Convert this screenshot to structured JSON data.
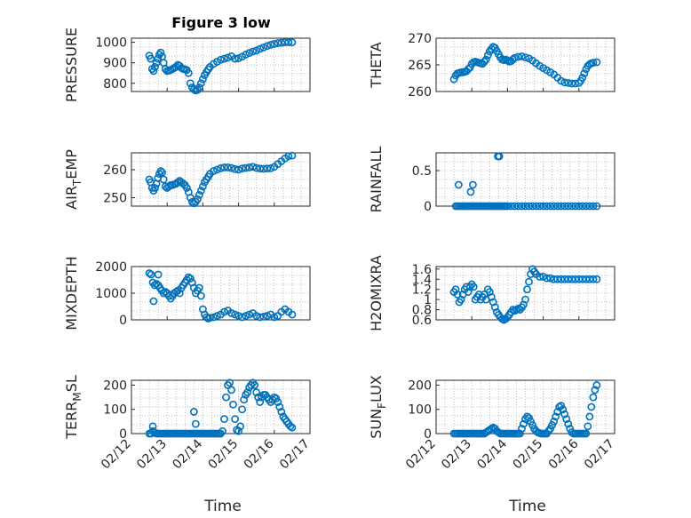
{
  "figure": {
    "title": "Figure 3 low",
    "marker_color": "#0072BD",
    "axis_color": "#262626",
    "grid_color": "#b0b0b0"
  },
  "chart_data": [
    {
      "id": "pressure",
      "type": "scatter",
      "ylabel": "PRESSURE",
      "xlim": [
        "02/12",
        "02/17"
      ],
      "ylim": [
        760,
        1020
      ],
      "yticks": [
        800,
        900,
        1000
      ],
      "xticks": [
        "02/12",
        "02/13",
        "02/14",
        "02/15",
        "02/16",
        "02/17"
      ],
      "show_xticklabels": false,
      "x": [
        12.5,
        12.54,
        12.58,
        12.62,
        12.66,
        12.7,
        12.74,
        12.78,
        12.82,
        12.86,
        12.9,
        12.95,
        13.0,
        13.05,
        13.1,
        13.15,
        13.2,
        13.25,
        13.3,
        13.35,
        13.4,
        13.45,
        13.5,
        13.55,
        13.6,
        13.65,
        13.7,
        13.75,
        13.8,
        13.85,
        13.9,
        13.95,
        14.0,
        14.05,
        14.1,
        14.15,
        14.2,
        14.3,
        14.4,
        14.5,
        14.6,
        14.7,
        14.8,
        14.9,
        15.0,
        15.1,
        15.2,
        15.3,
        15.4,
        15.5,
        15.6,
        15.7,
        15.8,
        15.9,
        16.0,
        16.1,
        16.2,
        16.3,
        16.4,
        16.5
      ],
      "y": [
        935,
        920,
        870,
        860,
        880,
        900,
        920,
        940,
        950,
        930,
        900,
        870,
        860,
        862,
        865,
        870,
        875,
        880,
        890,
        885,
        875,
        870,
        868,
        865,
        850,
        800,
        780,
        770,
        765,
        768,
        780,
        800,
        820,
        840,
        855,
        868,
        880,
        895,
        905,
        915,
        920,
        925,
        932,
        920,
        922,
        930,
        940,
        948,
        955,
        960,
        968,
        975,
        982,
        988,
        992,
        996,
        998,
        1000,
        1000,
        1000
      ]
    },
    {
      "id": "theta",
      "type": "scatter",
      "ylabel": "THETA",
      "xlim": [
        "02/12",
        "02/17"
      ],
      "ylim": [
        260,
        270
      ],
      "yticks": [
        260,
        265,
        270
      ],
      "xticks": [
        "02/12",
        "02/13",
        "02/14",
        "02/15",
        "02/16",
        "02/17"
      ],
      "show_xticklabels": false,
      "x": [
        12.5,
        12.55,
        12.6,
        12.65,
        12.7,
        12.75,
        12.8,
        12.85,
        12.9,
        12.95,
        13.0,
        13.05,
        13.1,
        13.15,
        13.2,
        13.25,
        13.3,
        13.35,
        13.4,
        13.45,
        13.5,
        13.55,
        13.6,
        13.65,
        13.7,
        13.75,
        13.8,
        13.85,
        13.9,
        13.95,
        14.0,
        14.05,
        14.1,
        14.15,
        14.2,
        14.3,
        14.4,
        14.5,
        14.6,
        14.7,
        14.8,
        14.9,
        15.0,
        15.1,
        15.2,
        15.3,
        15.4,
        15.5,
        15.6,
        15.7,
        15.8,
        15.9,
        16.0,
        16.05,
        16.1,
        16.15,
        16.2,
        16.25,
        16.3,
        16.35,
        16.4,
        16.5
      ],
      "y": [
        262.3,
        263.0,
        263.4,
        263.5,
        263.6,
        263.6,
        263.7,
        263.8,
        264.2,
        264.5,
        265.2,
        265.5,
        265.6,
        265.5,
        265.4,
        265.3,
        265.2,
        265.6,
        266.0,
        266.8,
        267.5,
        268.0,
        268.4,
        268.2,
        267.6,
        267.0,
        266.4,
        266.0,
        265.9,
        266.0,
        265.8,
        265.6,
        265.7,
        266.0,
        266.3,
        266.5,
        266.6,
        266.4,
        266.2,
        265.8,
        265.3,
        264.8,
        264.4,
        264.0,
        263.6,
        263.2,
        262.6,
        262.0,
        261.7,
        261.6,
        261.5,
        261.5,
        261.6,
        262.0,
        262.6,
        263.4,
        264.2,
        264.8,
        265.1,
        265.3,
        265.4,
        265.5
      ]
    },
    {
      "id": "air-temp",
      "type": "scatter",
      "ylabel": "AIR_TEMP",
      "ylabel_parts": {
        "main": "AIR",
        "sub": "T",
        "rest": "EMP"
      },
      "xlim": [
        "02/12",
        "02/17"
      ],
      "ylim": [
        247,
        266
      ],
      "yticks": [
        250,
        260
      ],
      "xticks": [
        "02/12",
        "02/13",
        "02/14",
        "02/15",
        "02/16",
        "02/17"
      ],
      "show_xticklabels": false,
      "x": [
        12.5,
        12.54,
        12.58,
        12.62,
        12.66,
        12.7,
        12.74,
        12.78,
        12.82,
        12.86,
        12.9,
        12.95,
        13.0,
        13.05,
        13.1,
        13.15,
        13.2,
        13.25,
        13.3,
        13.35,
        13.4,
        13.45,
        13.5,
        13.55,
        13.6,
        13.65,
        13.7,
        13.75,
        13.8,
        13.85,
        13.9,
        13.95,
        14.0,
        14.05,
        14.1,
        14.15,
        14.2,
        14.3,
        14.4,
        14.5,
        14.6,
        14.7,
        14.8,
        14.9,
        15.0,
        15.1,
        15.2,
        15.3,
        15.4,
        15.5,
        15.6,
        15.7,
        15.8,
        15.9,
        16.0,
        16.1,
        16.2,
        16.3,
        16.4,
        16.5
      ],
      "y": [
        256.5,
        255.5,
        253.5,
        252.5,
        253.5,
        255.0,
        257.0,
        258.5,
        259.5,
        259.0,
        256.5,
        254.0,
        253.5,
        254.0,
        254.5,
        254.5,
        254.8,
        255.0,
        255.5,
        256.0,
        255.5,
        255.0,
        254.5,
        253.5,
        252.0,
        250.0,
        248.5,
        248.0,
        248.5,
        249.5,
        251.0,
        252.5,
        254.0,
        255.5,
        256.5,
        257.5,
        258.5,
        259.5,
        260.0,
        260.5,
        260.8,
        260.8,
        260.6,
        260.2,
        260.0,
        260.4,
        260.6,
        260.8,
        261.0,
        260.6,
        260.4,
        260.3,
        260.4,
        260.5,
        261.0,
        262.0,
        263.0,
        264.0,
        264.8,
        265.0
      ]
    },
    {
      "id": "rainfall",
      "type": "scatter",
      "ylabel": "RAINFALL",
      "xlim": [
        "02/12",
        "02/17"
      ],
      "ylim": [
        0,
        0.75
      ],
      "yticks": [
        0,
        0.5
      ],
      "xticks": [
        "02/12",
        "02/13",
        "02/14",
        "02/15",
        "02/16",
        "02/17"
      ],
      "show_xticklabels": false,
      "x": [
        12.55,
        12.6,
        12.65,
        12.7,
        12.75,
        12.8,
        12.85,
        12.9,
        12.95,
        13.0,
        13.05,
        13.1,
        13.15,
        13.2,
        13.25,
        13.3,
        13.35,
        13.4,
        13.45,
        13.5,
        13.55,
        13.6,
        13.65,
        13.7,
        13.75,
        13.8,
        13.85,
        13.9,
        13.95,
        14.0,
        14.1,
        14.2,
        14.3,
        14.4,
        14.5,
        14.6,
        14.7,
        14.8,
        14.9,
        15.0,
        15.1,
        15.2,
        15.3,
        15.4,
        15.5,
        15.6,
        15.7,
        15.8,
        15.9,
        16.0,
        16.1,
        16.2,
        16.3,
        16.4,
        16.5,
        12.63,
        12.97,
        13.03,
        13.73,
        13.77
      ],
      "y": [
        0,
        0,
        0,
        0,
        0,
        0,
        0,
        0,
        0,
        0,
        0,
        0,
        0,
        0,
        0,
        0,
        0,
        0,
        0,
        0,
        0,
        0,
        0,
        0,
        0,
        0,
        0,
        0,
        0,
        0,
        0,
        0,
        0,
        0,
        0,
        0,
        0,
        0,
        0,
        0,
        0,
        0,
        0,
        0,
        0,
        0,
        0,
        0,
        0,
        0,
        0,
        0,
        0,
        0,
        0,
        0.3,
        0.2,
        0.3,
        0.7,
        0.7
      ]
    },
    {
      "id": "mixdepth",
      "type": "scatter",
      "ylabel": "MIXDEPTH",
      "xlim": [
        "02/12",
        "02/17"
      ],
      "ylim": [
        0,
        2000
      ],
      "yticks": [
        0,
        1000,
        2000
      ],
      "xticks": [
        "02/12",
        "02/13",
        "02/14",
        "02/15",
        "02/16",
        "02/17"
      ],
      "show_xticklabels": false,
      "x": [
        12.5,
        12.55,
        12.6,
        12.65,
        12.7,
        12.75,
        12.8,
        12.85,
        12.9,
        12.95,
        13.0,
        13.05,
        13.1,
        13.15,
        13.2,
        13.25,
        13.3,
        13.35,
        13.4,
        13.45,
        13.5,
        13.55,
        13.6,
        13.65,
        13.7,
        13.75,
        13.8,
        13.85,
        13.9,
        13.95,
        14.0,
        14.05,
        14.1,
        14.15,
        14.2,
        14.3,
        14.4,
        14.5,
        14.6,
        14.7,
        14.8,
        14.9,
        15.0,
        15.1,
        15.2,
        15.3,
        15.4,
        15.5,
        15.6,
        15.7,
        15.8,
        15.9,
        16.0,
        16.1,
        16.2,
        16.3,
        16.4,
        16.5,
        12.62,
        12.75
      ],
      "y": [
        1750,
        1700,
        1400,
        1300,
        1350,
        1700,
        1200,
        1100,
        1000,
        1050,
        1000,
        900,
        800,
        900,
        1000,
        1050,
        1100,
        1000,
        1200,
        1300,
        1400,
        1500,
        1600,
        1550,
        1400,
        1200,
        1000,
        1100,
        1200,
        900,
        400,
        200,
        100,
        50,
        80,
        100,
        150,
        200,
        300,
        350,
        250,
        200,
        150,
        100,
        150,
        200,
        250,
        150,
        100,
        120,
        150,
        200,
        100,
        150,
        300,
        400,
        300,
        200,
        700,
        1300
      ]
    },
    {
      "id": "h2omixra",
      "type": "scatter",
      "ylabel": "H2OMIXRA",
      "xlim": [
        "02/12",
        "02/17"
      ],
      "ylim": [
        0.6,
        1.65
      ],
      "yticks": [
        0.6,
        0.8,
        1,
        1.2,
        1.4,
        1.6
      ],
      "xticks": [
        "02/12",
        "02/13",
        "02/14",
        "02/15",
        "02/16",
        "02/17"
      ],
      "show_xticklabels": false,
      "x": [
        12.5,
        12.55,
        12.6,
        12.65,
        12.7,
        12.75,
        12.8,
        12.85,
        12.9,
        12.95,
        13.0,
        13.05,
        13.1,
        13.15,
        13.2,
        13.25,
        13.3,
        13.35,
        13.4,
        13.45,
        13.5,
        13.55,
        13.6,
        13.65,
        13.7,
        13.75,
        13.8,
        13.85,
        13.9,
        13.95,
        14.0,
        14.05,
        14.1,
        14.15,
        14.2,
        14.25,
        14.3,
        14.35,
        14.4,
        14.45,
        14.5,
        14.55,
        14.6,
        14.65,
        14.7,
        14.75,
        14.8,
        14.9,
        15.0,
        15.1,
        15.2,
        15.3,
        15.4,
        15.5,
        15.6,
        15.7,
        15.8,
        15.9,
        16.0,
        16.1,
        16.2,
        16.3,
        16.4,
        16.5
      ],
      "y": [
        1.15,
        1.2,
        1.1,
        0.95,
        1.0,
        1.1,
        1.2,
        1.25,
        1.15,
        1.25,
        1.3,
        1.25,
        1.0,
        1.05,
        1.1,
        1.0,
        1.05,
        1.1,
        1.0,
        1.2,
        1.15,
        1.05,
        0.95,
        0.85,
        0.75,
        0.7,
        0.65,
        0.62,
        0.6,
        0.62,
        0.65,
        0.7,
        0.75,
        0.8,
        0.78,
        0.8,
        0.82,
        0.8,
        0.85,
        0.9,
        1.0,
        1.2,
        1.35,
        1.5,
        1.6,
        1.55,
        1.5,
        1.45,
        1.45,
        1.42,
        1.42,
        1.4,
        1.4,
        1.4,
        1.4,
        1.4,
        1.4,
        1.4,
        1.4,
        1.4,
        1.4,
        1.4,
        1.4,
        1.4
      ]
    },
    {
      "id": "terr-msl",
      "type": "scatter",
      "ylabel": "TERR_MSL",
      "ylabel_parts": {
        "main": "TERR",
        "sub": "M",
        "rest": "SL"
      },
      "xlim": [
        "02/12",
        "02/17"
      ],
      "ylim": [
        0,
        220
      ],
      "yticks": [
        0,
        100,
        200
      ],
      "xticks": [
        "02/12",
        "02/13",
        "02/14",
        "02/15",
        "02/16",
        "02/17"
      ],
      "show_xticklabels": true,
      "x": [
        12.5,
        12.55,
        12.6,
        12.65,
        12.7,
        12.75,
        12.8,
        12.85,
        12.9,
        12.95,
        13.0,
        13.05,
        13.1,
        13.15,
        13.2,
        13.25,
        13.3,
        13.35,
        13.4,
        13.45,
        13.5,
        13.55,
        13.6,
        13.65,
        13.7,
        13.75,
        13.8,
        13.85,
        13.9,
        13.95,
        14.0,
        14.05,
        14.1,
        14.15,
        14.2,
        14.25,
        14.3,
        14.35,
        14.4,
        14.45,
        14.5,
        14.55,
        14.6,
        14.65,
        14.7,
        14.75,
        14.8,
        14.85,
        14.9,
        14.95,
        15.0,
        15.05,
        15.1,
        15.15,
        15.2,
        15.25,
        15.3,
        15.35,
        15.4,
        15.45,
        15.5,
        15.55,
        15.6,
        15.65,
        15.7,
        15.75,
        15.8,
        15.85,
        15.9,
        15.95,
        16.0,
        16.05,
        16.1,
        16.15,
        16.2,
        16.25,
        16.3,
        16.35,
        16.4,
        16.45,
        16.5,
        12.6,
        13.75,
        13.8
      ],
      "y": [
        0,
        0,
        10,
        5,
        0,
        0,
        0,
        0,
        0,
        0,
        0,
        0,
        0,
        0,
        0,
        0,
        0,
        0,
        0,
        0,
        0,
        0,
        0,
        0,
        0,
        0,
        0,
        0,
        0,
        0,
        0,
        0,
        0,
        0,
        0,
        0,
        0,
        0,
        0,
        0,
        0,
        10,
        60,
        150,
        200,
        210,
        180,
        120,
        60,
        15,
        10,
        30,
        100,
        140,
        160,
        170,
        190,
        200,
        210,
        200,
        170,
        150,
        130,
        150,
        160,
        160,
        150,
        140,
        130,
        140,
        150,
        145,
        130,
        110,
        90,
        70,
        60,
        50,
        40,
        30,
        25,
        30,
        90,
        40
      ]
    },
    {
      "id": "sun-flux",
      "type": "scatter",
      "ylabel": "SUN_FLUX",
      "ylabel_parts": {
        "main": "SUN",
        "sub": "F",
        "rest": "LUX"
      },
      "xlim": [
        "02/12",
        "02/17"
      ],
      "ylim": [
        0,
        220
      ],
      "yticks": [
        0,
        100,
        200
      ],
      "xticks": [
        "02/12",
        "02/13",
        "02/14",
        "02/15",
        "02/16",
        "02/17"
      ],
      "show_xticklabels": true,
      "x": [
        12.5,
        12.55,
        12.6,
        12.65,
        12.7,
        12.75,
        12.8,
        12.85,
        12.9,
        12.95,
        13.0,
        13.05,
        13.1,
        13.15,
        13.2,
        13.25,
        13.3,
        13.35,
        13.4,
        13.45,
        13.5,
        13.55,
        13.6,
        13.65,
        13.7,
        13.75,
        13.8,
        13.85,
        13.9,
        13.95,
        14.0,
        14.05,
        14.1,
        14.15,
        14.2,
        14.25,
        14.3,
        14.35,
        14.4,
        14.45,
        14.5,
        14.55,
        14.6,
        14.65,
        14.7,
        14.75,
        14.8,
        14.85,
        14.9,
        14.95,
        15.0,
        15.05,
        15.1,
        15.15,
        15.2,
        15.25,
        15.3,
        15.35,
        15.4,
        15.45,
        15.5,
        15.55,
        15.6,
        15.65,
        15.7,
        15.75,
        15.8,
        15.85,
        15.9,
        15.95,
        16.0,
        16.05,
        16.1,
        16.15,
        16.2,
        16.25,
        16.3,
        16.35,
        16.4,
        16.45,
        16.5
      ],
      "y": [
        0,
        0,
        0,
        0,
        0,
        0,
        0,
        0,
        0,
        0,
        0,
        0,
        0,
        0,
        0,
        0,
        0,
        0,
        5,
        10,
        15,
        20,
        25,
        20,
        10,
        5,
        0,
        0,
        0,
        0,
        0,
        0,
        0,
        0,
        0,
        0,
        0,
        0,
        20,
        40,
        60,
        70,
        65,
        50,
        35,
        20,
        10,
        5,
        2,
        0,
        0,
        0,
        0,
        10,
        20,
        35,
        50,
        70,
        90,
        110,
        115,
        100,
        80,
        60,
        40,
        20,
        5,
        0,
        0,
        0,
        0,
        0,
        0,
        0,
        0,
        30,
        70,
        110,
        150,
        180,
        200
      ]
    }
  ],
  "x_axis": {
    "label": "Time",
    "tick_labels": [
      "02/12",
      "02/13",
      "02/14",
      "02/15",
      "02/16",
      "02/17"
    ]
  }
}
